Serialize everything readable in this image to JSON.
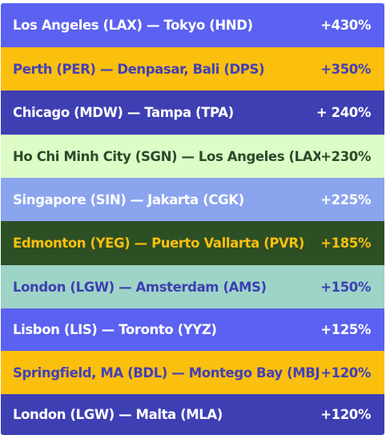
{
  "routes": [
    {
      "route": "Los Angeles (LAX) — Tokyo (HND)",
      "change": "+430%",
      "bg": "#5b61f0",
      "fg": "#ffffff"
    },
    {
      "route": "Perth (PER) — Denpasar, Bali (DPS)",
      "change": "+350%",
      "bg": "#fbbf0e",
      "fg": "#4340b6"
    },
    {
      "route": "Chicago (MDW) — Tampa (TPA)",
      "change": "+ 240%",
      "bg": "#3e3fb3",
      "fg": "#ffffff"
    },
    {
      "route": "Ho Chi Minh City (SGN) — Los Angeles (LAX)",
      "change": "+230%",
      "bg": "#ddfcc6",
      "fg": "#2c4a2c"
    },
    {
      "route": "Singapore (SIN) — Jakarta (CGK)",
      "change": "+225%",
      "bg": "#8aa4ee",
      "fg": "#ffffff"
    },
    {
      "route": "Edmonton (YEG) — Puerto Vallarta (PVR)",
      "change": "+185%",
      "bg": "#2d4f24",
      "fg": "#fbbf0e"
    },
    {
      "route": "London (LGW) — Amsterdam (AMS)",
      "change": "+150%",
      "bg": "#9dd4c7",
      "fg": "#3e3fb3"
    },
    {
      "route": "Lisbon (LIS) — Toronto (YYZ)",
      "change": "+125%",
      "bg": "#5b61f0",
      "fg": "#ffffff"
    },
    {
      "route": "Springfield, MA (BDL) — Montego Bay (MBJ)",
      "change": "+120%",
      "bg": "#fbbf0e",
      "fg": "#4340b6"
    },
    {
      "route": "London (LGW) — Malta (MLA)",
      "change": "+120%",
      "bg": "#3e3fb3",
      "fg": "#ffffff"
    }
  ]
}
